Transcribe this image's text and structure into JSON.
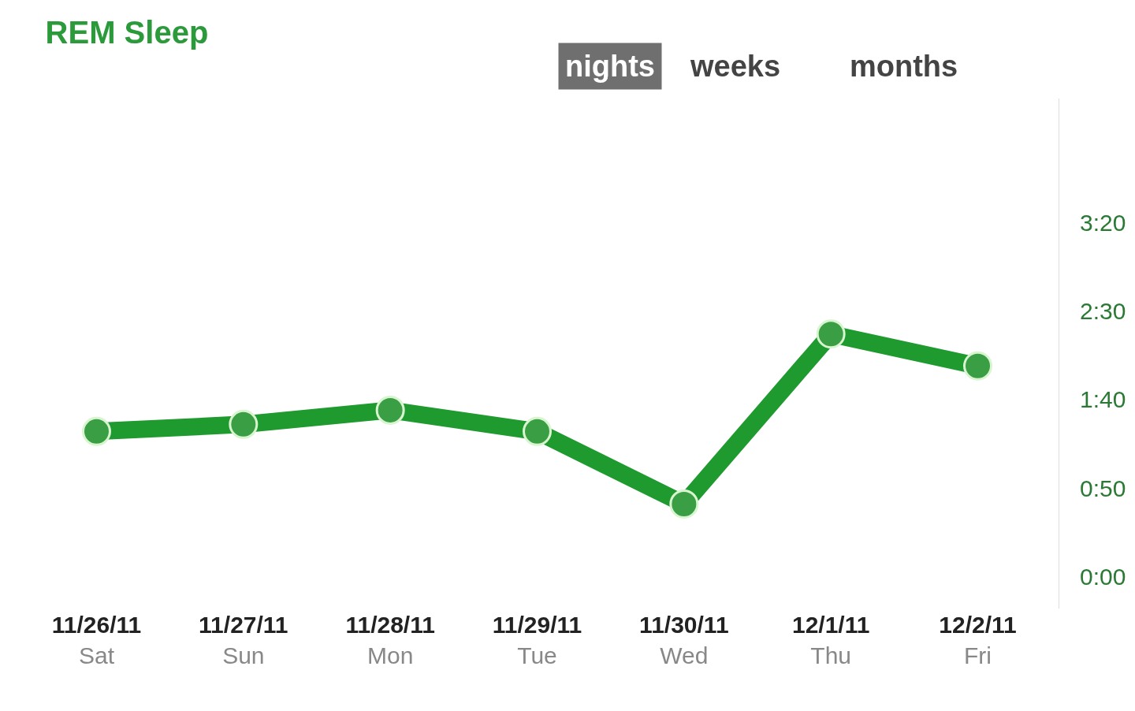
{
  "chart_data": {
    "type": "line",
    "title": "REM Sleep",
    "annotations": [
      "nights",
      "weeks",
      "months"
    ],
    "categories": [
      "11/26/11\nSat",
      "11/27/11\nSun",
      "11/28/11\nMon",
      "11/29/11\nTue",
      "11/30/11\nWed",
      "12/1/11\nThu",
      "12/2/11\nFri"
    ],
    "series": [
      {
        "color": "#1e9a2e",
        "values": [
          82,
          86,
          94,
          82,
          41,
          137,
          119
        ]
      }
    ],
    "ylim": [
      -18,
      270
    ],
    "yticks": [
      {
        "value": 0,
        "label": "0:00"
      },
      {
        "value": 50,
        "label": "0:50"
      },
      {
        "value": 100,
        "label": "1:40"
      },
      {
        "value": 150,
        "label": "2:30"
      },
      {
        "value": 200,
        "label": "3:20"
      }
    ],
    "marker": "circle",
    "line_style": "solid"
  }
}
